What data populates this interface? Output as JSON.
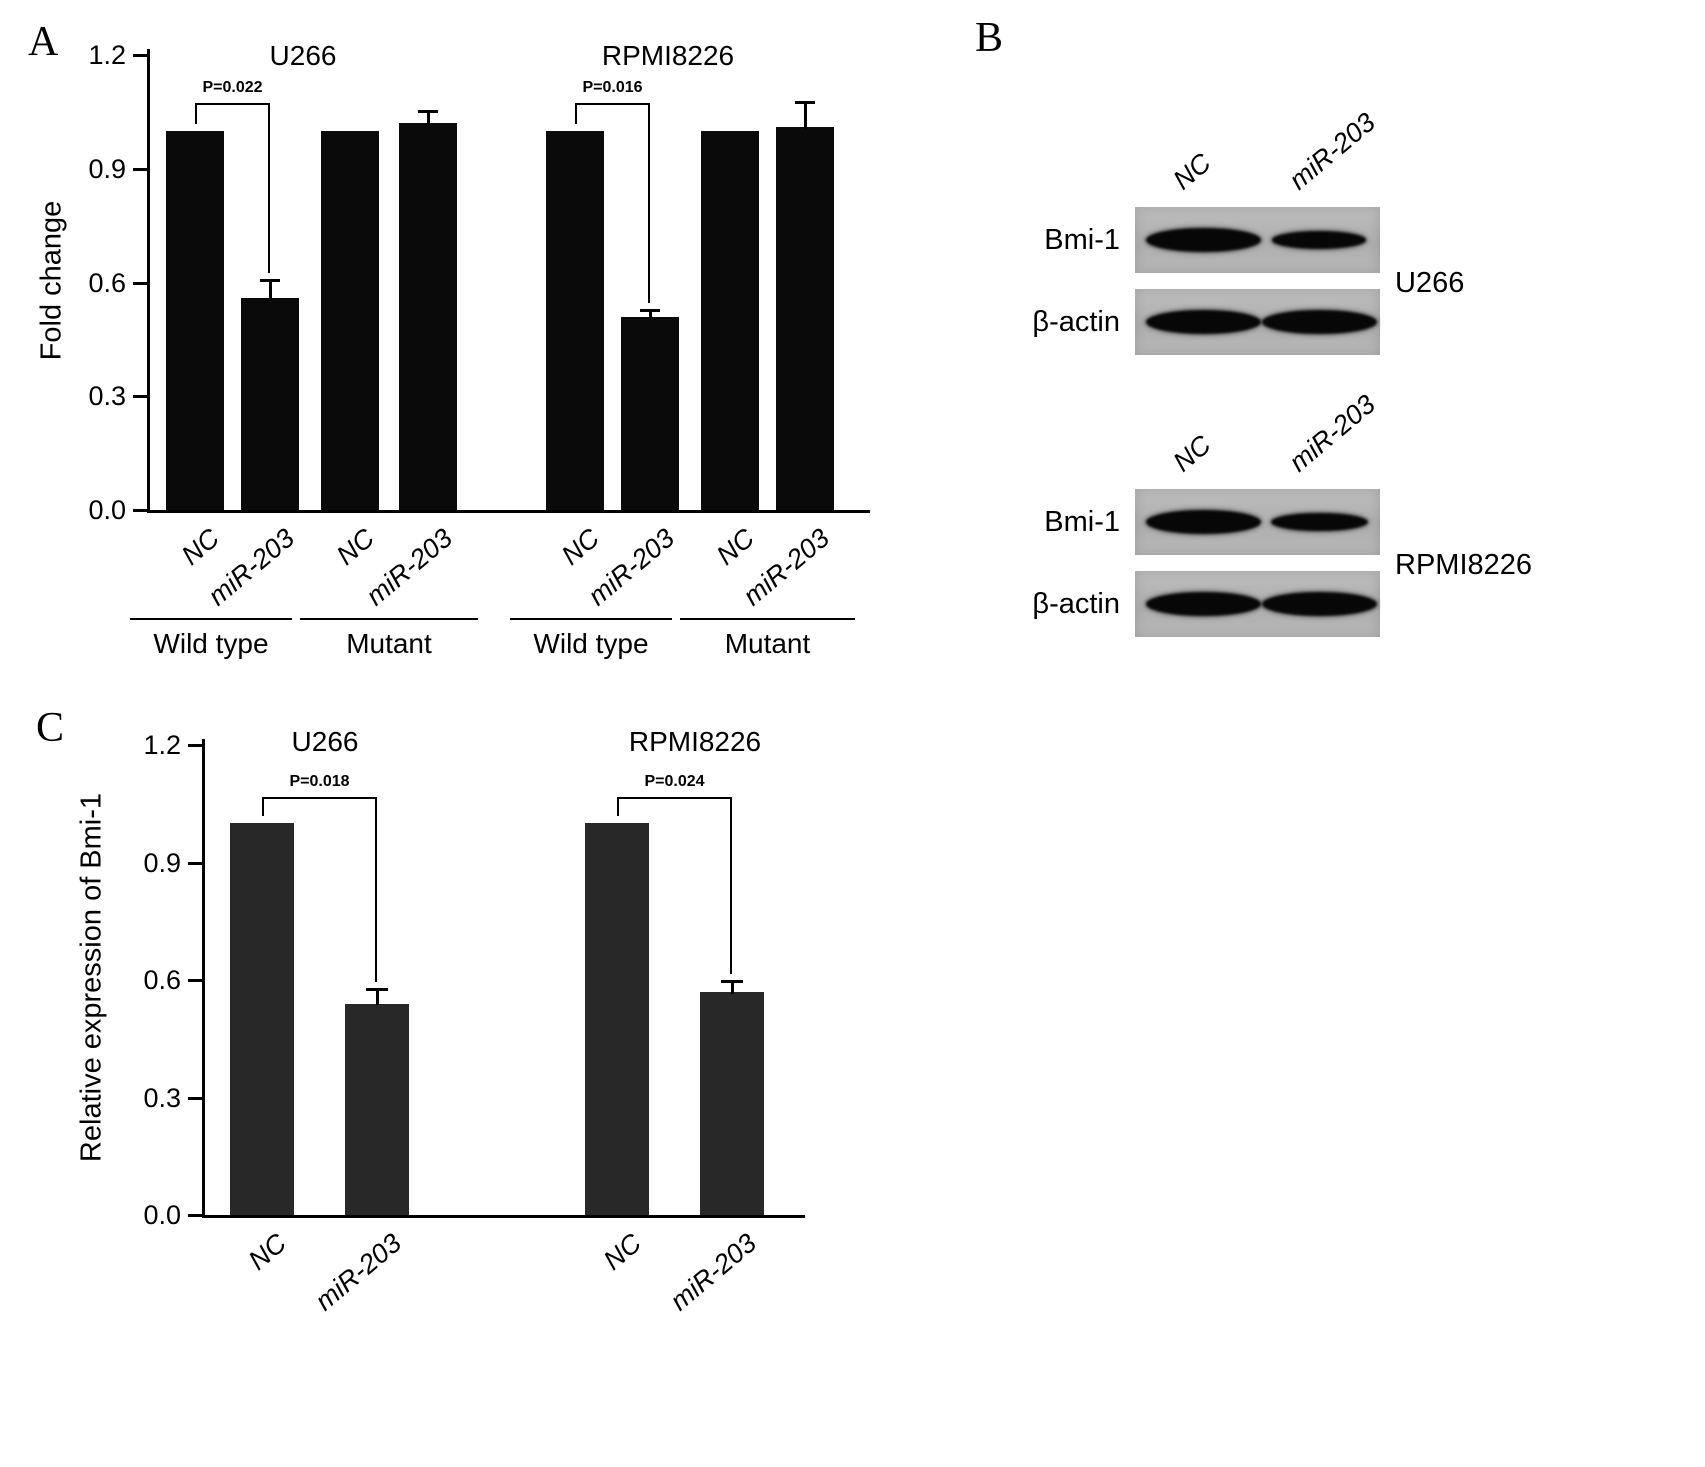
{
  "panels": {
    "A": {
      "label": "A"
    },
    "B": {
      "label": "B"
    },
    "C": {
      "label": "C"
    }
  },
  "chart_data": [
    {
      "id": "panelA",
      "type": "bar",
      "ylabel": "Fold change",
      "ylim": [
        0,
        1.2
      ],
      "yticks": [
        0,
        0.3,
        0.6,
        0.9,
        1.2
      ],
      "grid": false,
      "section_titles": [
        "U266",
        "RPMI8226"
      ],
      "categories": [
        "NC",
        "miR-203",
        "NC",
        "miR-203",
        "NC",
        "miR-203",
        "NC",
        "miR-203"
      ],
      "values": [
        1.0,
        0.56,
        1.0,
        1.02,
        1.0,
        0.51,
        1.0,
        1.01
      ],
      "errors": [
        0,
        0.05,
        0,
        0.035,
        0,
        0.02,
        0,
        0.07
      ],
      "group_labels": [
        "Wild type",
        "Mutant",
        "Wild type",
        "Mutant"
      ],
      "annotations": [
        {
          "text": "P=0.022",
          "from": 0,
          "to": 1
        },
        {
          "text": "P=0.016",
          "from": 4,
          "to": 5
        }
      ],
      "bar_color": "#0a0a0a"
    },
    {
      "id": "panelC",
      "type": "bar",
      "ylabel": "Relative expression of Bmi-1",
      "ylim": [
        0,
        1.2
      ],
      "yticks": [
        0,
        0.3,
        0.6,
        0.9,
        1.2
      ],
      "grid": false,
      "section_titles": [
        "U266",
        "RPMI8226"
      ],
      "categories": [
        "NC",
        "miR-203",
        "NC",
        "miR-203"
      ],
      "values": [
        1.0,
        0.54,
        1.0,
        0.57
      ],
      "errors": [
        0,
        0.04,
        0,
        0.03
      ],
      "annotations": [
        {
          "text": "P=0.018",
          "from": 0,
          "to": 1
        },
        {
          "text": "P=0.024",
          "from": 2,
          "to": 3
        }
      ],
      "bar_color": "#282828"
    }
  ],
  "western": {
    "groups": [
      {
        "cell_line": "U266",
        "lanes": [
          "NC",
          "miR-203"
        ],
        "rows": [
          {
            "protein": "Bmi-1",
            "band_intensity": [
              1.0,
              0.55
            ]
          },
          {
            "protein": "β-actin",
            "band_intensity": [
              1.0,
              1.0
            ]
          }
        ]
      },
      {
        "cell_line": "RPMI8226",
        "lanes": [
          "NC",
          "miR-203"
        ],
        "rows": [
          {
            "protein": "Bmi-1",
            "band_intensity": [
              1.0,
              0.6
            ]
          },
          {
            "protein": "β-actin",
            "band_intensity": [
              1.0,
              1.0
            ]
          }
        ]
      }
    ]
  }
}
